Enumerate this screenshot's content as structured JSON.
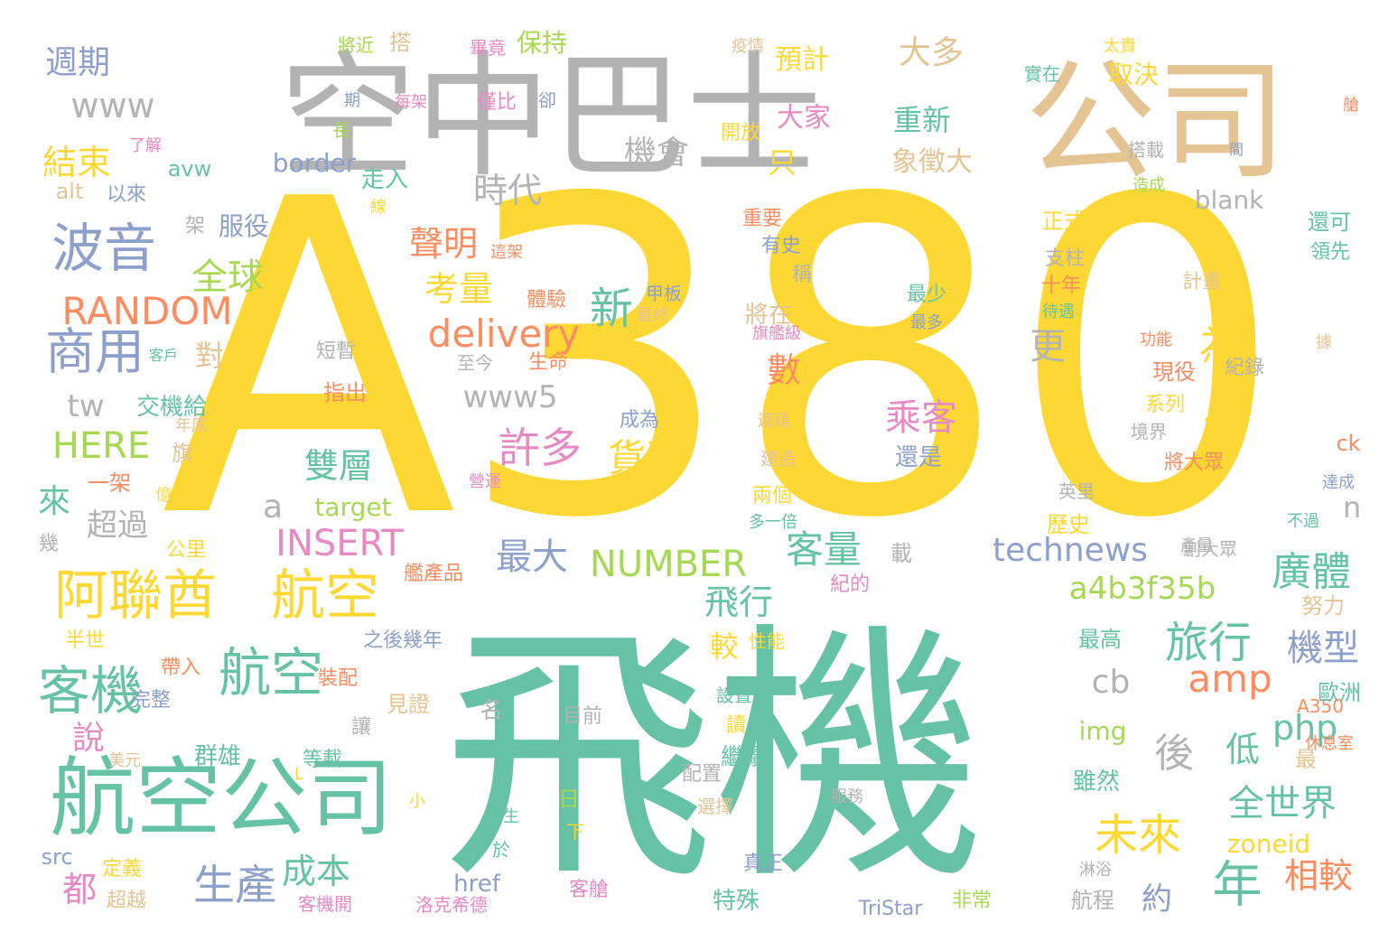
{
  "palette": {
    "yellow": "#fdd835",
    "green": "#66c2a5",
    "gray": "#b3b3b3",
    "tan": "#e5c494",
    "blue": "#8da0cb",
    "orange": "#fc8d62",
    "pink": "#e78ac3",
    "lime": "#a6d854"
  },
  "words": [
    {
      "text": "A380",
      "color": "yellow"
    },
    {
      "text": "飛機",
      "color": "green"
    },
    {
      "text": "空中巴士",
      "color": "gray"
    },
    {
      "text": "公司",
      "color": "tan"
    },
    {
      "text": "航空公司",
      "color": "green"
    },
    {
      "text": "阿聯酋",
      "color": "yellow"
    },
    {
      "text": "航空",
      "color": "yellow"
    },
    {
      "text": "客機",
      "color": "green"
    },
    {
      "text": "航空",
      "color": "green"
    },
    {
      "text": "波音",
      "color": "blue"
    },
    {
      "text": "商用",
      "color": "blue"
    },
    {
      "text": "RANDOM",
      "color": "orange"
    },
    {
      "text": "delivery",
      "color": "orange"
    },
    {
      "text": "NUMBER",
      "color": "lime"
    },
    {
      "text": "technews",
      "color": "blue"
    },
    {
      "text": "a4b3f35b",
      "color": "lime"
    },
    {
      "text": "INSERT",
      "color": "pink"
    },
    {
      "text": "HERE",
      "color": "lime"
    },
    {
      "text": "www",
      "color": "gray"
    },
    {
      "text": "www5",
      "color": "gray"
    },
    {
      "text": "tw",
      "color": "gray"
    },
    {
      "text": "amp",
      "color": "orange"
    },
    {
      "text": "php",
      "color": "green"
    },
    {
      "text": "cb",
      "color": "gray"
    },
    {
      "text": "a",
      "color": "gray"
    },
    {
      "text": "n",
      "color": "gray"
    },
    {
      "text": "旅行",
      "color": "green"
    },
    {
      "text": "廣體",
      "color": "green"
    },
    {
      "text": "機型",
      "color": "blue"
    },
    {
      "text": "全世界",
      "color": "green"
    },
    {
      "text": "未來",
      "color": "yellow"
    },
    {
      "text": "年",
      "color": "green"
    },
    {
      "text": "相較",
      "color": "orange"
    },
    {
      "text": "生產",
      "color": "blue"
    },
    {
      "text": "成本",
      "color": "green"
    },
    {
      "text": "都",
      "color": "pink"
    },
    {
      "text": "說",
      "color": "pink"
    },
    {
      "text": "客量",
      "color": "green"
    },
    {
      "text": "許多",
      "color": "pink"
    },
    {
      "text": "貨運",
      "color": "yellow"
    },
    {
      "text": "仍",
      "color": "yellow"
    },
    {
      "text": "為",
      "color": "yellow"
    },
    {
      "text": "乘客",
      "color": "pink"
    },
    {
      "text": "雙層",
      "color": "green"
    },
    {
      "text": "最大",
      "color": "blue"
    },
    {
      "text": "全球",
      "color": "lime"
    },
    {
      "text": "聲明",
      "color": "orange"
    },
    {
      "text": "考量",
      "color": "yellow"
    },
    {
      "text": "新",
      "color": "green"
    },
    {
      "text": "數",
      "color": "orange"
    },
    {
      "text": "更",
      "color": "gray"
    },
    {
      "text": "時代",
      "color": "gray"
    },
    {
      "text": "機會",
      "color": "gray"
    },
    {
      "text": "結束",
      "color": "yellow"
    },
    {
      "text": "週期",
      "color": "blue"
    },
    {
      "text": "大多",
      "color": "tan"
    },
    {
      "text": "重新",
      "color": "green"
    },
    {
      "text": "象徵大",
      "color": "tan"
    },
    {
      "text": "只",
      "color": "yellow"
    },
    {
      "text": "大家",
      "color": "pink"
    },
    {
      "text": "預計",
      "color": "yellow"
    },
    {
      "text": "取決",
      "color": "yellow"
    },
    {
      "text": "保持",
      "color": "lime"
    },
    {
      "text": "搭",
      "color": "tan"
    },
    {
      "text": "來",
      "color": "green"
    },
    {
      "text": "超過",
      "color": "gray"
    },
    {
      "text": "後",
      "color": "gray"
    },
    {
      "text": "低",
      "color": "green"
    },
    {
      "text": "約",
      "color": "blue"
    },
    {
      "text": "飛行",
      "color": "green"
    },
    {
      "text": "較",
      "color": "yellow"
    },
    {
      "text": "對",
      "color": "tan"
    },
    {
      "text": "border",
      "color": "blue"
    },
    {
      "text": "blank",
      "color": "gray"
    },
    {
      "text": "target",
      "color": "lime"
    },
    {
      "text": "zoneid",
      "color": "yellow"
    },
    {
      "text": "img",
      "color": "lime"
    },
    {
      "text": "href",
      "color": "blue"
    },
    {
      "text": "src",
      "color": "blue"
    },
    {
      "text": "alt",
      "color": "tan"
    },
    {
      "text": "avw",
      "color": "green"
    },
    {
      "text": "ck",
      "color": "orange"
    },
    {
      "text": "TriStar",
      "color": "blue"
    },
    {
      "text": "A350",
      "color": "orange"
    },
    {
      "text": "L",
      "color": "yellow"
    },
    {
      "text": "以來",
      "color": "blue"
    },
    {
      "text": "服役",
      "color": "blue"
    },
    {
      "text": "架",
      "color": "gray"
    },
    {
      "text": "交機給",
      "color": "green"
    },
    {
      "text": "年底",
      "color": "tan"
    },
    {
      "text": "旗",
      "color": "tan"
    },
    {
      "text": "一架",
      "color": "orange"
    },
    {
      "text": "億",
      "color": "yellow"
    },
    {
      "text": "幾",
      "color": "gray"
    },
    {
      "text": "公里",
      "color": "yellow"
    },
    {
      "text": "半世",
      "color": "yellow"
    },
    {
      "text": "帶入",
      "color": "orange"
    },
    {
      "text": "完整",
      "color": "blue"
    },
    {
      "text": "裝配",
      "color": "orange"
    },
    {
      "text": "群雄",
      "color": "green"
    },
    {
      "text": "美元",
      "color": "tan"
    },
    {
      "text": "等載",
      "color": "green"
    },
    {
      "text": "定義",
      "color": "yellow"
    },
    {
      "text": "超越",
      "color": "tan"
    },
    {
      "text": "客機開",
      "color": "pink"
    },
    {
      "text": "洛克希德",
      "color": "pink"
    },
    {
      "text": "客艙",
      "color": "pink"
    },
    {
      "text": "小",
      "color": "yellow"
    },
    {
      "text": "總生",
      "color": "green"
    },
    {
      "text": "於",
      "color": "green"
    },
    {
      "text": "下",
      "color": "yellow"
    },
    {
      "text": "日",
      "color": "lime"
    },
    {
      "text": "目前",
      "color": "gray"
    },
    {
      "text": "名",
      "color": "gray"
    },
    {
      "text": "見證",
      "color": "tan"
    },
    {
      "text": "讓",
      "color": "gray"
    },
    {
      "text": "之後幾年",
      "color": "blue"
    },
    {
      "text": "艦產品",
      "color": "orange"
    },
    {
      "text": "產量",
      "color": "gray"
    },
    {
      "text": "紀的",
      "color": "pink"
    },
    {
      "text": "建造",
      "color": "tan"
    },
    {
      "text": "還藉",
      "color": "tan"
    },
    {
      "text": "兩個",
      "color": "yellow"
    },
    {
      "text": "多一倍",
      "color": "green"
    },
    {
      "text": "性能",
      "color": "yellow"
    },
    {
      "text": "設置頭",
      "color": "green"
    },
    {
      "text": "讀",
      "color": "yellow"
    },
    {
      "text": "繼續",
      "color": "green"
    },
    {
      "text": "配置",
      "color": "gray"
    },
    {
      "text": "選擇",
      "color": "tan"
    },
    {
      "text": "服務",
      "color": "gray"
    },
    {
      "text": "真正",
      "color": "blue"
    },
    {
      "text": "特殊",
      "color": "green"
    },
    {
      "text": "非常",
      "color": "lime"
    },
    {
      "text": "航程",
      "color": "gray"
    },
    {
      "text": "淋浴",
      "color": "gray"
    },
    {
      "text": "雖然",
      "color": "green"
    },
    {
      "text": "最高",
      "color": "green"
    },
    {
      "text": "努力",
      "color": "tan"
    },
    {
      "text": "歐洲",
      "color": "green"
    },
    {
      "text": "最",
      "color": "tan"
    },
    {
      "text": "休息室",
      "color": "orange"
    },
    {
      "text": "達成",
      "color": "blue"
    },
    {
      "text": "不過",
      "color": "green"
    },
    {
      "text": "創大眾",
      "color": "gray"
    },
    {
      "text": "英里",
      "color": "gray"
    },
    {
      "text": "歷史",
      "color": "yellow"
    },
    {
      "text": "載",
      "color": "gray"
    },
    {
      "text": "將大眾",
      "color": "orange"
    },
    {
      "text": "境界",
      "color": "gray"
    },
    {
      "text": "系列",
      "color": "yellow"
    },
    {
      "text": "現役",
      "color": "orange"
    },
    {
      "text": "紀錄",
      "color": "gray"
    },
    {
      "text": "功能",
      "color": "orange"
    },
    {
      "text": "據",
      "color": "tan"
    },
    {
      "text": "計畫",
      "color": "tan"
    },
    {
      "text": "十年",
      "color": "orange"
    },
    {
      "text": "待遇",
      "color": "green"
    },
    {
      "text": "支柱",
      "color": "gray"
    },
    {
      "text": "還可",
      "color": "green"
    },
    {
      "text": "領先",
      "color": "green"
    },
    {
      "text": "正式",
      "color": "yellow"
    },
    {
      "text": "最少",
      "color": "green"
    },
    {
      "text": "最多",
      "color": "blue"
    },
    {
      "text": "還是",
      "color": "blue"
    },
    {
      "text": "成為",
      "color": "blue"
    },
    {
      "text": "旗艦級",
      "color": "pink"
    },
    {
      "text": "將在",
      "color": "tan"
    },
    {
      "text": "稱",
      "color": "gray"
    },
    {
      "text": "有史",
      "color": "blue"
    },
    {
      "text": "重要",
      "color": "orange"
    },
    {
      "text": "月",
      "color": "yellow"
    },
    {
      "text": "甲板",
      "color": "blue"
    },
    {
      "text": "最終",
      "color": "tan"
    },
    {
      "text": "體驗",
      "color": "orange"
    },
    {
      "text": "生命",
      "color": "orange"
    },
    {
      "text": "至今",
      "color": "gray"
    },
    {
      "text": "短暫",
      "color": "gray"
    },
    {
      "text": "指出",
      "color": "orange"
    },
    {
      "text": "客戶",
      "color": "green"
    },
    {
      "text": "這架",
      "color": "orange"
    },
    {
      "text": "線",
      "color": "yellow"
    },
    {
      "text": "走入",
      "color": "green"
    },
    {
      "text": "長",
      "color": "lime"
    },
    {
      "text": "期",
      "color": "blue"
    },
    {
      "text": "將近",
      "color": "lime"
    },
    {
      "text": "畢竟",
      "color": "pink"
    },
    {
      "text": "每架",
      "color": "pink"
    },
    {
      "text": "僅比",
      "color": "pink"
    },
    {
      "text": "卻",
      "color": "blue"
    },
    {
      "text": "疫情",
      "color": "tan"
    },
    {
      "text": "開放",
      "color": "yellow"
    },
    {
      "text": "實在",
      "color": "green"
    },
    {
      "text": "太貴",
      "color": "yellow"
    },
    {
      "text": "搭載",
      "color": "gray"
    },
    {
      "text": "間",
      "color": "blue"
    },
    {
      "text": "造成",
      "color": "lime"
    },
    {
      "text": "艙",
      "color": "orange"
    },
    {
      "text": "了解",
      "color": "pink"
    },
    {
      "text": "營運",
      "color": "pink"
    }
  ]
}
